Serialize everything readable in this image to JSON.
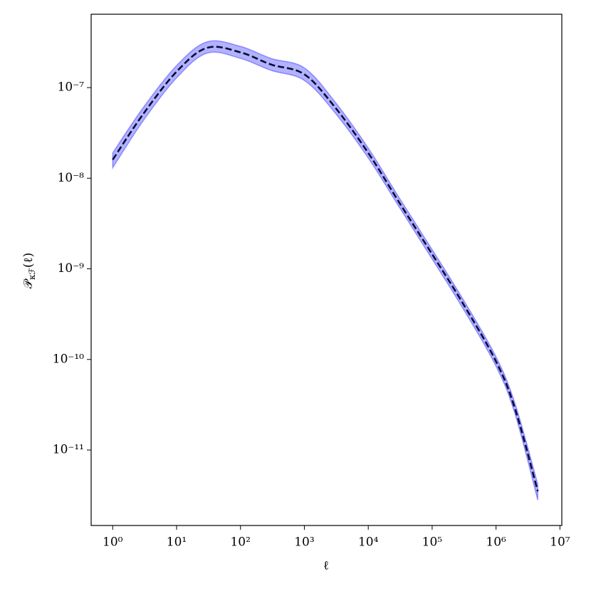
{
  "chart_data": {
    "type": "line",
    "x_label": "ℓ",
    "y_label": {
      "main": "𝒫",
      "sub": "κℱ",
      "tail": "(ℓ)"
    },
    "x": [
      1,
      3,
      10,
      30,
      100,
      300,
      1000,
      3000,
      10000,
      30000,
      100000,
      300000,
      1000000,
      2000000,
      4500000
    ],
    "series": [
      {
        "color": "#0b0b3b",
        "band_color": "#0000ff",
        "values": [
          1.6e-08,
          5.1e-08,
          1.5e-07,
          2.75e-07,
          2.45e-07,
          1.8e-07,
          1.4e-07,
          6.1e-08,
          1.9e-08,
          5.5e-09,
          1.45e-09,
          4.2e-10,
          9.5e-11,
          2.8e-11,
          3.5e-12
        ],
        "upper": [
          1.9e-08,
          6e-08,
          1.75e-07,
          3.2e-07,
          2.85e-07,
          2.1e-07,
          1.65e-07,
          7e-08,
          2.15e-08,
          6.2e-09,
          1.63e-09,
          4.7e-10,
          1.07e-10,
          3.2e-11,
          4.2e-12
        ],
        "lower": [
          1.3e-08,
          4.3e-08,
          1.28e-07,
          2.4e-07,
          2.1e-07,
          1.55e-07,
          1.2e-07,
          5.3e-08,
          1.67e-08,
          4.9e-09,
          1.28e-09,
          3.7e-10,
          8.4e-11,
          2.45e-11,
          2.8e-12
        ]
      }
    ],
    "log_x": true,
    "log_y": true,
    "xlim": [
      0.46,
      10700000.0
    ],
    "ylim": [
      1.47e-12,
      6.45e-07
    ],
    "xticks": [
      {
        "value": 1,
        "label": "10⁰"
      },
      {
        "value": 10,
        "label": "10¹"
      },
      {
        "value": 100,
        "label": "10²"
      },
      {
        "value": 1000,
        "label": "10³"
      },
      {
        "value": 10000,
        "label": "10⁴"
      },
      {
        "value": 100000,
        "label": "10⁵"
      },
      {
        "value": 1000000,
        "label": "10⁶"
      },
      {
        "value": 10000000,
        "label": "10⁷"
      }
    ],
    "yticks": [
      {
        "value": 1e-11,
        "label": "10⁻¹¹"
      },
      {
        "value": 1e-10,
        "label": "10⁻¹⁰"
      },
      {
        "value": 1e-09,
        "label": "10⁻⁹"
      },
      {
        "value": 1e-08,
        "label": "10⁻⁸"
      },
      {
        "value": 1e-07,
        "label": "10⁻⁷"
      }
    ],
    "grid": false
  }
}
